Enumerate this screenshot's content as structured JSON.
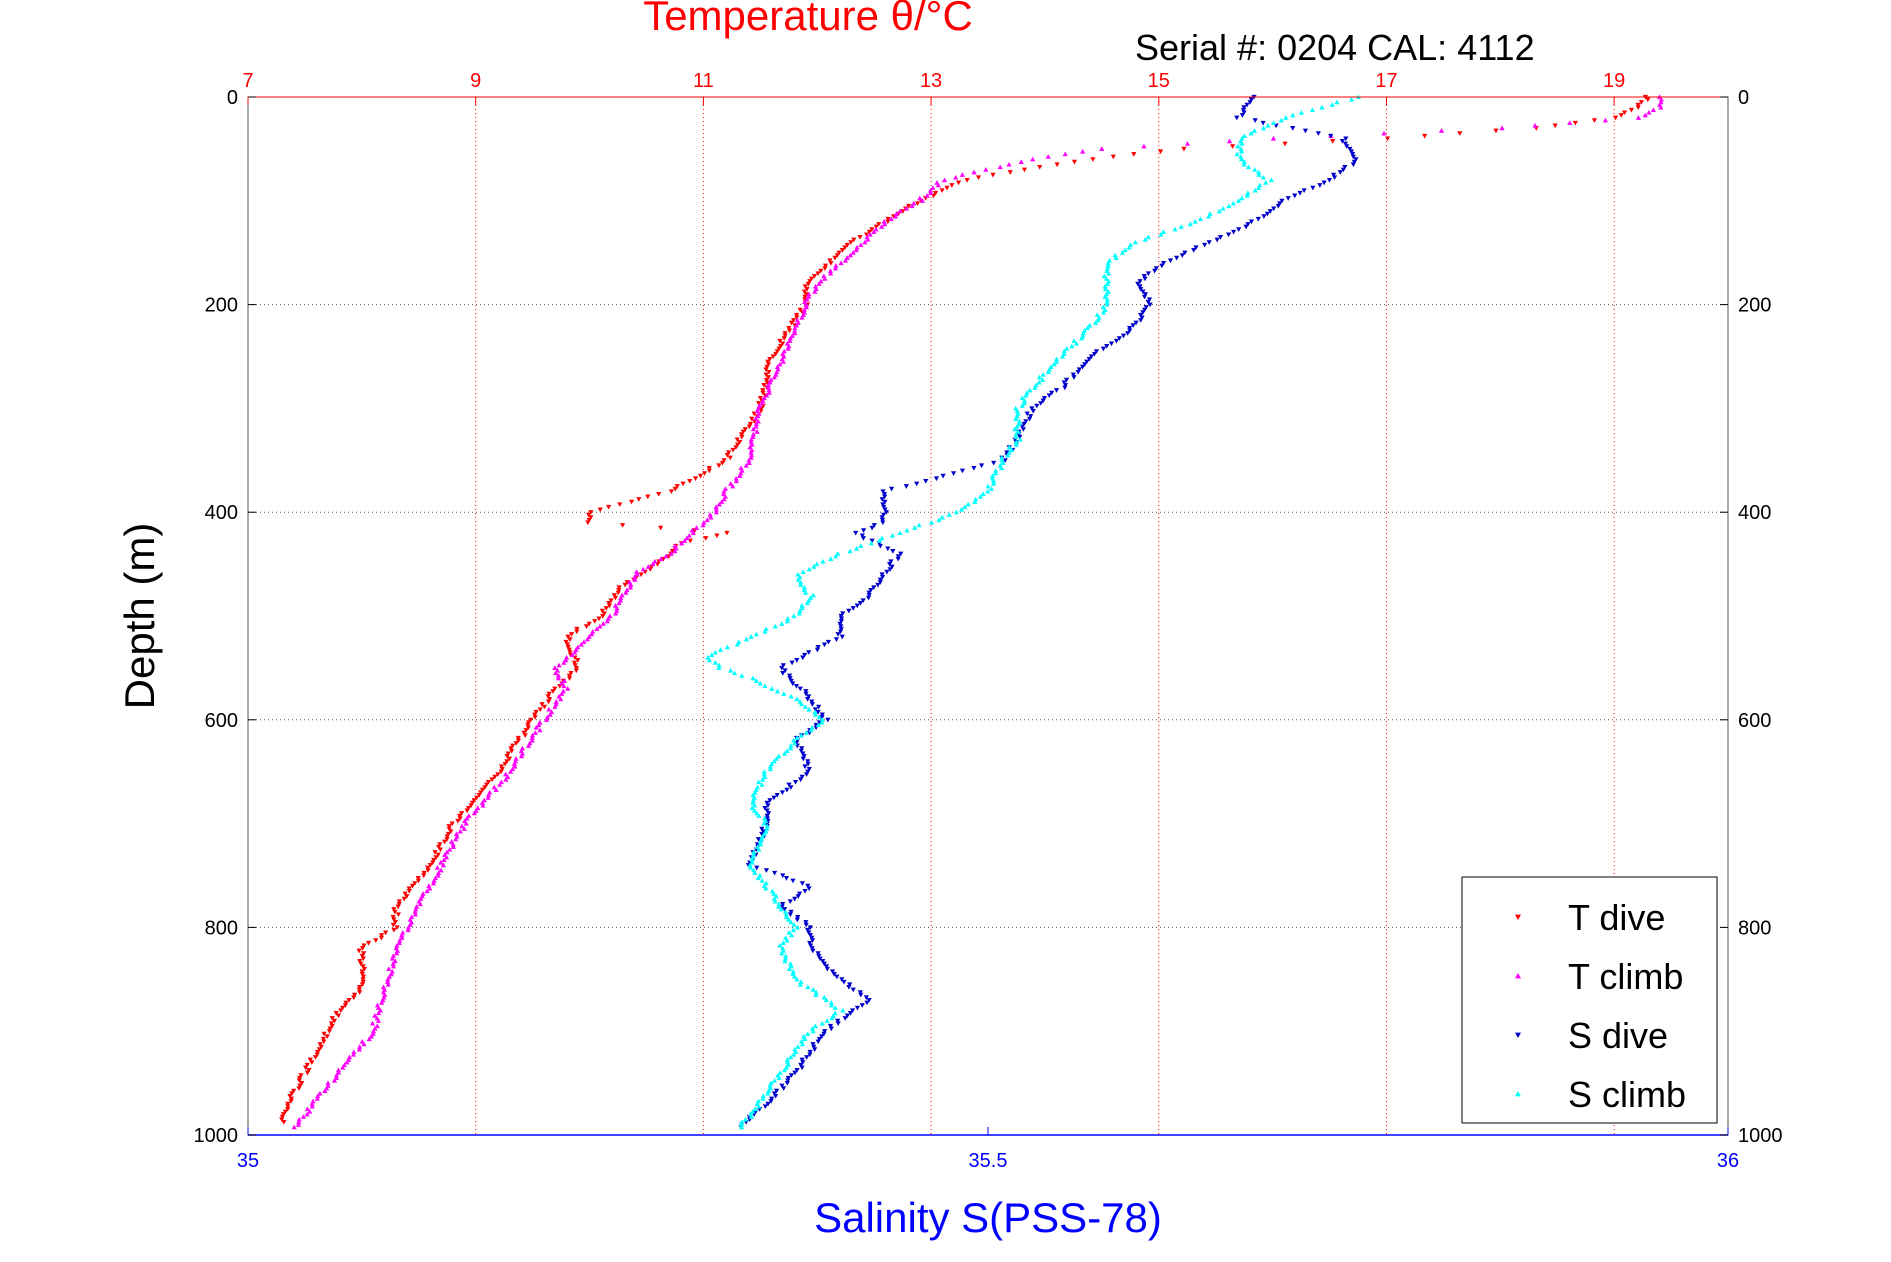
{
  "chart_data": {
    "type": "scatter",
    "title": "Temperature θ/°C",
    "subtitle": "Serial #: 0204  CAL: 4112",
    "xlabel_bottom": "Salinity S(PSS-78)",
    "xlabel_top": "Temperature θ/°C",
    "ylabel": "Depth (m)",
    "ylim": [
      1000,
      0
    ],
    "xlim_salinity": [
      35,
      36
    ],
    "xlim_temperature": [
      7,
      20
    ],
    "y_ticks": [
      "0",
      "200",
      "400",
      "600",
      "800",
      "1000"
    ],
    "y_ticks_right": [
      "0",
      "200",
      "400",
      "600",
      "800",
      "1000"
    ],
    "x_ticks_salinity": [
      "35",
      "35.5",
      "36"
    ],
    "x_ticks_temperature": [
      "7",
      "9",
      "11",
      "13",
      "15",
      "17",
      "19"
    ],
    "grid": true,
    "legend_position": "bottom-right",
    "colors": {
      "temperature_axis": "#ff0000",
      "salinity_axis": "#0000ff",
      "t_dive": "#ff0000",
      "t_climb": "#ff00ff",
      "s_dive": "#0000cc",
      "s_climb": "#00ffff",
      "grid": "#555555"
    },
    "series": [
      {
        "name": "T dive",
        "axis": "temperature",
        "marker": "triangle-down",
        "color": "#ff0000",
        "depth": [
          0,
          10,
          20,
          30,
          40,
          50,
          60,
          70,
          80,
          100,
          120,
          140,
          160,
          180,
          200,
          250,
          300,
          350,
          380,
          400,
          410,
          420,
          430,
          450,
          470,
          500,
          520,
          550,
          570,
          600,
          650,
          700,
          740,
          780,
          800,
          820,
          860,
          880,
          920,
          960,
          990
        ],
        "value": [
          19.3,
          19.2,
          19.0,
          18.3,
          17.0,
          15.2,
          14.4,
          13.8,
          13.3,
          12.9,
          12.6,
          12.3,
          12.1,
          11.9,
          11.9,
          11.6,
          11.5,
          11.2,
          10.7,
          10.0,
          10.0,
          11.2,
          10.8,
          10.6,
          10.3,
          10.1,
          9.8,
          9.9,
          9.7,
          9.5,
          9.2,
          8.8,
          8.6,
          8.3,
          8.3,
          8.0,
          8.0,
          7.8,
          7.6,
          7.4,
          7.3
        ]
      },
      {
        "name": "T climb",
        "axis": "temperature",
        "marker": "triangle-up",
        "color": "#ff00ff",
        "depth": [
          0,
          10,
          20,
          30,
          40,
          50,
          60,
          70,
          80,
          100,
          120,
          140,
          160,
          180,
          200,
          250,
          300,
          350,
          380,
          400,
          420,
          440,
          460,
          480,
          500,
          520,
          550,
          570,
          600,
          650,
          700,
          740,
          780,
          800,
          820,
          860,
          900,
          940,
          980,
          995
        ],
        "value": [
          19.4,
          19.4,
          19.2,
          18.0,
          16.0,
          14.5,
          13.9,
          13.5,
          13.1,
          12.9,
          12.6,
          12.4,
          12.2,
          12.0,
          11.9,
          11.7,
          11.5,
          11.4,
          11.2,
          11.1,
          10.9,
          10.7,
          10.4,
          10.3,
          10.2,
          10.0,
          9.7,
          9.8,
          9.6,
          9.3,
          8.9,
          8.7,
          8.5,
          8.4,
          8.3,
          8.2,
          8.1,
          7.8,
          7.5,
          7.4
        ]
      },
      {
        "name": "S dive",
        "axis": "salinity",
        "marker": "triangle-down",
        "color": "#0000cc",
        "depth": [
          0,
          20,
          40,
          60,
          80,
          100,
          120,
          140,
          160,
          180,
          200,
          220,
          250,
          280,
          300,
          330,
          350,
          380,
          400,
          410,
          420,
          440,
          460,
          480,
          500,
          520,
          550,
          580,
          600,
          620,
          650,
          680,
          700,
          740,
          760,
          780,
          800,
          820,
          850,
          870,
          880,
          900,
          940,
          970,
          995
        ],
        "value": [
          35.68,
          35.67,
          35.74,
          35.75,
          35.73,
          35.7,
          35.68,
          35.65,
          35.62,
          35.6,
          35.61,
          35.6,
          35.57,
          35.55,
          35.53,
          35.52,
          35.51,
          35.43,
          35.43,
          35.43,
          35.41,
          35.44,
          35.43,
          35.42,
          35.4,
          35.4,
          35.36,
          35.38,
          35.39,
          35.37,
          35.38,
          35.35,
          35.35,
          35.34,
          35.38,
          35.36,
          35.38,
          35.38,
          35.4,
          35.42,
          35.41,
          35.39,
          35.37,
          35.35,
          35.33
        ]
      },
      {
        "name": "S climb",
        "axis": "salinity",
        "marker": "triangle-up",
        "color": "#00ffff",
        "depth": [
          0,
          20,
          40,
          60,
          80,
          100,
          120,
          140,
          160,
          180,
          200,
          220,
          250,
          280,
          300,
          330,
          350,
          380,
          400,
          420,
          440,
          460,
          480,
          500,
          520,
          540,
          550,
          560,
          580,
          600,
          620,
          650,
          680,
          700,
          740,
          760,
          780,
          800,
          820,
          850,
          870,
          880,
          900,
          940,
          980,
          995
        ],
        "value": [
          35.75,
          35.7,
          35.67,
          35.67,
          35.69,
          35.67,
          35.64,
          35.6,
          35.58,
          35.58,
          35.58,
          35.57,
          35.55,
          35.53,
          35.52,
          35.52,
          35.51,
          35.5,
          35.48,
          35.44,
          35.4,
          35.37,
          35.38,
          35.37,
          35.34,
          35.31,
          35.32,
          35.34,
          35.37,
          35.39,
          35.37,
          35.35,
          35.34,
          35.35,
          35.34,
          35.35,
          35.36,
          35.37,
          35.36,
          35.37,
          35.39,
          35.4,
          35.38,
          35.36,
          35.34,
          35.33
        ]
      }
    ]
  }
}
